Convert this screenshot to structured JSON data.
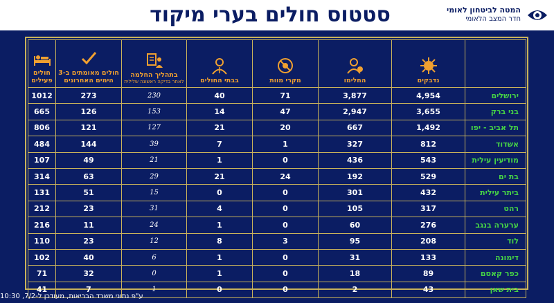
{
  "header": {
    "title": "סטטוס חולים בערי מיקוד",
    "org_line1": "המטה לביטחון לאומי",
    "org_line2": "חדר המצב הלאומי"
  },
  "columns": [
    {
      "label": "נדבקים",
      "icon": "virus-icon"
    },
    {
      "label": "החלימו",
      "icon": "recovered-person-icon"
    },
    {
      "label": "מקרי מוות",
      "icon": "no-virus-icon"
    },
    {
      "label": "בבתי החולים",
      "icon": "doctor-icon"
    },
    {
      "label": "בתהליך החלמה",
      "sub": "לאחר בדיקה ראשונה שלילית",
      "icon": "doc-person-icon"
    },
    {
      "label": "חולים מאומתים ב-3 הימים האחרונים",
      "icon": "checkmark-icon"
    },
    {
      "label": "חולים פעילים",
      "icon": "patient-bed-icon"
    }
  ],
  "rows": [
    {
      "city": "ירושלים",
      "infected": "4,954",
      "recovered": "3,877",
      "deaths": "71",
      "hospital": "40",
      "recovering": "230",
      "last3": "273",
      "active": "1012"
    },
    {
      "city": "בני ברק",
      "infected": "3,655",
      "recovered": "2,947",
      "deaths": "47",
      "hospital": "14",
      "recovering": "153",
      "last3": "126",
      "active": "665"
    },
    {
      "city": "תל אביב - יפו",
      "infected": "1,492",
      "recovered": "667",
      "deaths": "20",
      "hospital": "21",
      "recovering": "127",
      "last3": "121",
      "active": "806"
    },
    {
      "city": "אשדוד",
      "infected": "812",
      "recovered": "327",
      "deaths": "1",
      "hospital": "7",
      "recovering": "39",
      "last3": "144",
      "active": "484"
    },
    {
      "city": "מודיעין עילית",
      "infected": "543",
      "recovered": "436",
      "deaths": "0",
      "hospital": "1",
      "recovering": "21",
      "last3": "49",
      "active": "107"
    },
    {
      "city": "בת ים",
      "infected": "529",
      "recovered": "192",
      "deaths": "24",
      "hospital": "21",
      "recovering": "29",
      "last3": "63",
      "active": "314"
    },
    {
      "city": "ביתר עילית",
      "infected": "432",
      "recovered": "301",
      "deaths": "0",
      "hospital": "0",
      "recovering": "15",
      "last3": "51",
      "active": "131"
    },
    {
      "city": "רהט",
      "infected": "317",
      "recovered": "105",
      "deaths": "0",
      "hospital": "4",
      "recovering": "31",
      "last3": "23",
      "active": "212"
    },
    {
      "city": "ערערה בנגב",
      "infected": "276",
      "recovered": "60",
      "deaths": "0",
      "hospital": "1",
      "recovering": "24",
      "last3": "11",
      "active": "216"
    },
    {
      "city": "לוד",
      "infected": "208",
      "recovered": "95",
      "deaths": "3",
      "hospital": "8",
      "recovering": "12",
      "last3": "23",
      "active": "110"
    },
    {
      "city": "דימונה",
      "infected": "133",
      "recovered": "31",
      "deaths": "0",
      "hospital": "1",
      "recovering": "6",
      "last3": "40",
      "active": "102"
    },
    {
      "city": "כפר קאסם",
      "infected": "89",
      "recovered": "18",
      "deaths": "0",
      "hospital": "1",
      "recovering": "0",
      "last3": "32",
      "active": "71"
    },
    {
      "city": "בית שאן",
      "infected": "43",
      "recovered": "2",
      "deaths": "0",
      "hospital": "0",
      "recovering": "1",
      "last3": "7",
      "active": "41"
    }
  ],
  "footer": "ע\"פ נתוני משרד הבריאות, מעודכן ל-7/2, 10:30",
  "colors": {
    "background": "#0b1d63",
    "border": "#c9b35a",
    "header_text": "#f0a030",
    "city_text": "#46d246",
    "title": "#0b1d63"
  }
}
